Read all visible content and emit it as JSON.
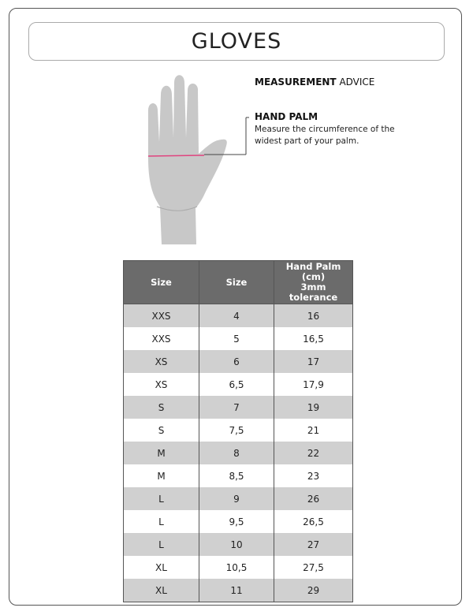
{
  "title": "GLOVES",
  "advice": {
    "bold": "MEASUREMENT",
    "rest": " ADVICE"
  },
  "hand_palm": {
    "heading": "HAND PALM",
    "description": "Measure the circumference of the widest part of your palm."
  },
  "colors": {
    "measure_line": "#e0447f",
    "hand": "#c8c8c8",
    "header": "#6b6b6b",
    "stripe": "#d0d0d0"
  },
  "table": {
    "headers": [
      "Size",
      "Size",
      "Hand Palm (cm)\n3mm tolerance"
    ],
    "header_line1": "Hand Palm (cm)",
    "header_line2": "3mm tolerance",
    "rows": [
      [
        "XXS",
        "4",
        "16"
      ],
      [
        "XXS",
        "5",
        "16,5"
      ],
      [
        "XS",
        "6",
        "17"
      ],
      [
        "XS",
        "6,5",
        "17,9"
      ],
      [
        "S",
        "7",
        "19"
      ],
      [
        "S",
        "7,5",
        "21"
      ],
      [
        "M",
        "8",
        "22"
      ],
      [
        "M",
        "8,5",
        "23"
      ],
      [
        "L",
        "9",
        "26"
      ],
      [
        "L",
        "9,5",
        "26,5"
      ],
      [
        "L",
        "10",
        "27"
      ],
      [
        "XL",
        "10,5",
        "27,5"
      ],
      [
        "XL",
        "11",
        "29"
      ]
    ]
  }
}
